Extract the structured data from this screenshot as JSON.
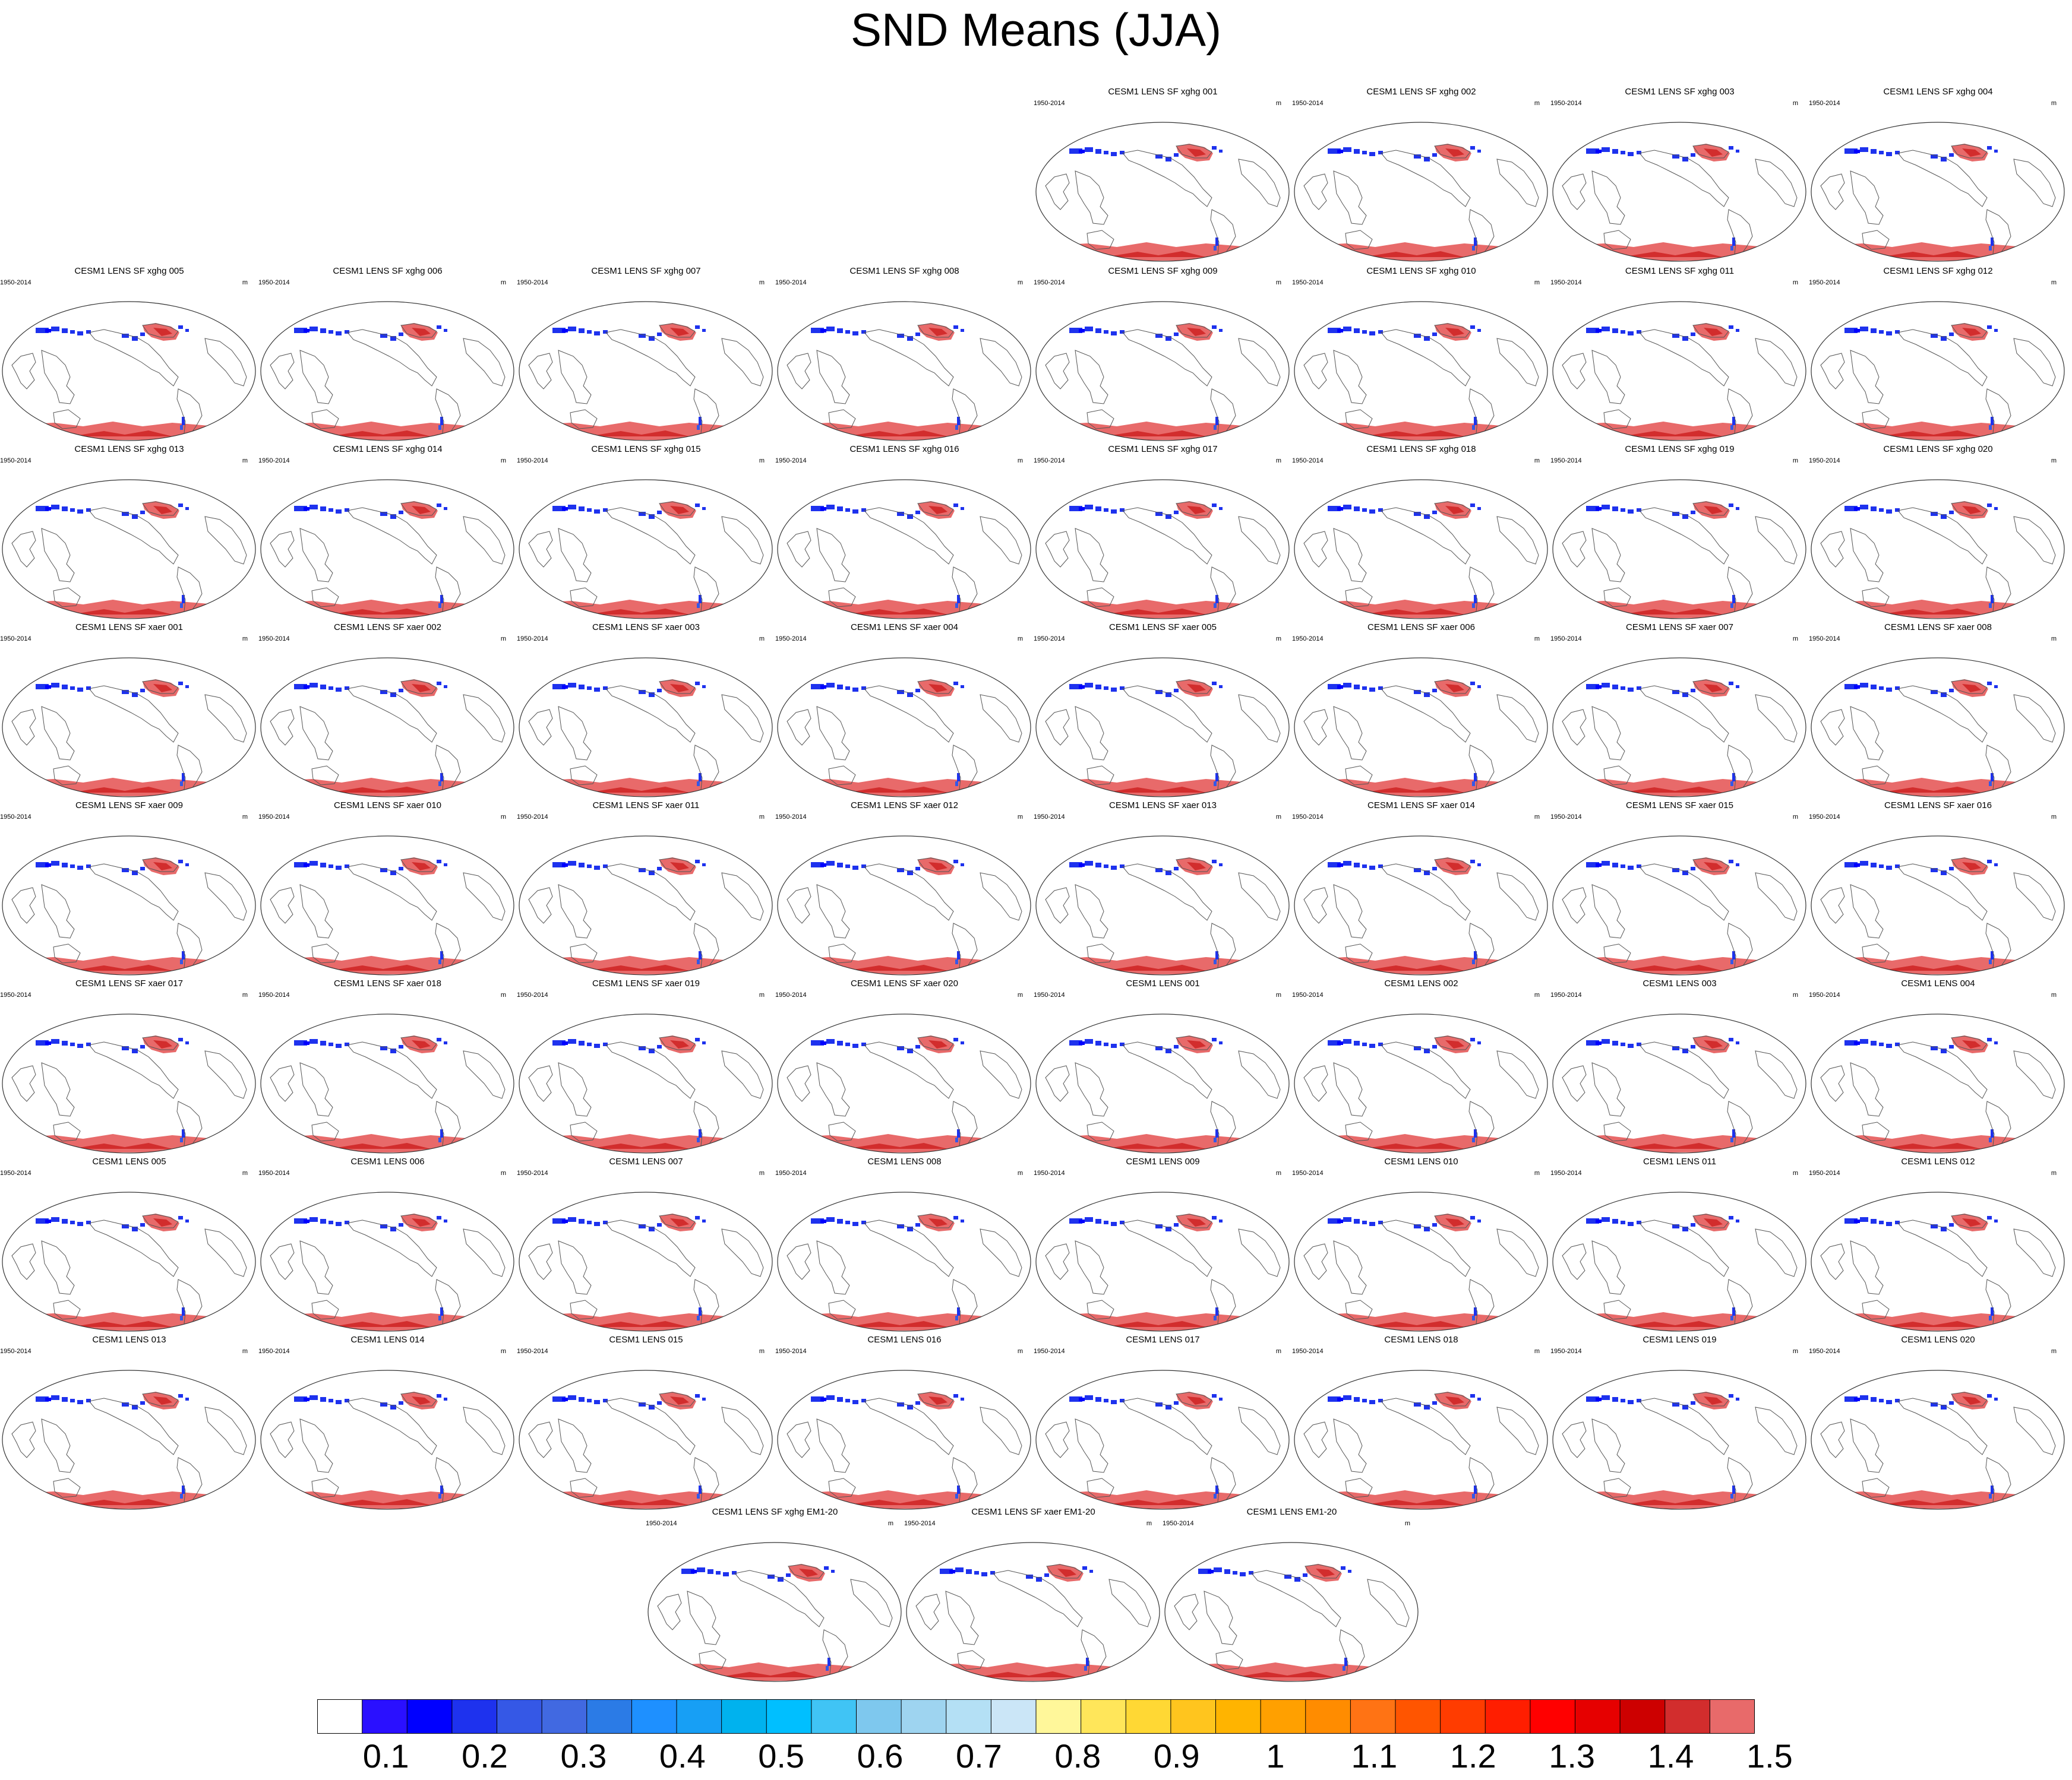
{
  "title": "SND Means (JJA)",
  "panel_left_label": "1950-2014",
  "panel_units": "m",
  "panels": [
    "CESM1 LENS SF xghg 001",
    "CESM1 LENS SF xghg 002",
    "CESM1 LENS SF xghg 003",
    "CESM1 LENS SF xghg 004",
    "CESM1 LENS SF xghg 005",
    "CESM1 LENS SF xghg 006",
    "CESM1 LENS SF xghg 007",
    "CESM1 LENS SF xghg 008",
    "CESM1 LENS SF xghg 009",
    "CESM1 LENS SF xghg 010",
    "CESM1 LENS SF xghg 011",
    "CESM1 LENS SF xghg 012",
    "CESM1 LENS SF xghg 013",
    "CESM1 LENS SF xghg 014",
    "CESM1 LENS SF xghg 015",
    "CESM1 LENS SF xghg 016",
    "CESM1 LENS SF xghg 017",
    "CESM1 LENS SF xghg 018",
    "CESM1 LENS SF xghg 019",
    "CESM1 LENS SF xghg 020",
    "CESM1 LENS SF xaer 001",
    "CESM1 LENS SF xaer 002",
    "CESM1 LENS SF xaer 003",
    "CESM1 LENS SF xaer 004",
    "CESM1 LENS SF xaer 005",
    "CESM1 LENS SF xaer 006",
    "CESM1 LENS SF xaer 007",
    "CESM1 LENS SF xaer 008",
    "CESM1 LENS SF xaer 009",
    "CESM1 LENS SF xaer 010",
    "CESM1 LENS SF xaer 011",
    "CESM1 LENS SF xaer 012",
    "CESM1 LENS SF xaer 013",
    "CESM1 LENS SF xaer 014",
    "CESM1 LENS SF xaer 015",
    "CESM1 LENS SF xaer 016",
    "CESM1 LENS SF xaer 017",
    "CESM1 LENS SF xaer 018",
    "CESM1 LENS SF xaer 019",
    "CESM1 LENS SF xaer 020",
    "CESM1 LENS 001",
    "CESM1 LENS 002",
    "CESM1 LENS 003",
    "CESM1 LENS 004",
    "CESM1 LENS 005",
    "CESM1 LENS 006",
    "CESM1 LENS 007",
    "CESM1 LENS 008",
    "CESM1 LENS 009",
    "CESM1 LENS 010",
    "CESM1 LENS 011",
    "CESM1 LENS 012",
    "CESM1 LENS 013",
    "CESM1 LENS 014",
    "CESM1 LENS 015",
    "CESM1 LENS 016",
    "CESM1 LENS 017",
    "CESM1 LENS 018",
    "CESM1 LENS 019",
    "CESM1 LENS 020",
    "CESM1 LENS SF xghg EM1-20",
    "CESM1 LENS SF xaer EM1-20",
    "CESM1 LENS EM1-20"
  ],
  "colorbar": {
    "colors": [
      "#ffffff",
      "#2a10ff",
      "#0000ff",
      "#1e32ee",
      "#3558e6",
      "#4169e1",
      "#2b7be6",
      "#1e90ff",
      "#179ff5",
      "#00b2ee",
      "#00bfff",
      "#40c4f5",
      "#7ec8ee",
      "#9ed4f0",
      "#b4e0f5",
      "#cbe6f7",
      "#fff79a",
      "#ffe65a",
      "#ffd834",
      "#ffc51e",
      "#ffb400",
      "#ffa000",
      "#ff8c00",
      "#ff7314",
      "#ff5500",
      "#ff3c00",
      "#ff1e00",
      "#ff0000",
      "#e60000",
      "#cd0000",
      "#d22d2d",
      "#e86a6a"
    ],
    "labels": [
      "0.1",
      "0.2",
      "0.3",
      "0.4",
      "0.5",
      "0.6",
      "0.7",
      "0.8",
      "0.9",
      "1",
      "1.1",
      "1.2",
      "1.3",
      "1.4",
      "1.5"
    ]
  },
  "chart_data": {
    "type": "heatmap",
    "title": "SND Means (JJA)",
    "variable": "SND",
    "season": "JJA",
    "period": "1950-2014",
    "units": "m",
    "panel_count": 63,
    "panel_layout": "8 rows of 4-8 map panels plus 3 ensemble-mean panels",
    "colorbar_levels": [
      0.1,
      0.2,
      0.3,
      0.4,
      0.5,
      0.6,
      0.7,
      0.8,
      0.9,
      1,
      1.1,
      1.2,
      1.3,
      1.4,
      1.5
    ],
    "regions": [
      {
        "region": "Antarctica",
        "approx_value": ">1.5"
      },
      {
        "region": "Greenland",
        "approx_value": ">1.5"
      },
      {
        "region": "High Arctic / Siberian coast",
        "approx_value": "0.1-0.4"
      },
      {
        "region": "Southern Andes",
        "approx_value": "0.1-0.3"
      }
    ]
  }
}
